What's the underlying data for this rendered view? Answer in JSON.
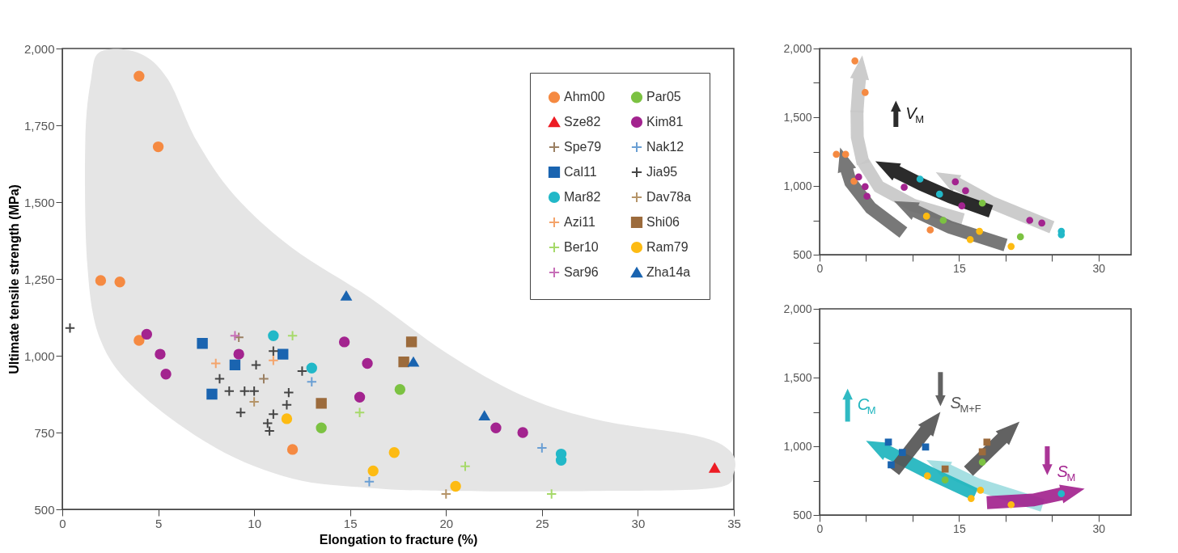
{
  "chart_data": [
    {
      "type": "scatter",
      "xlabel": "Elongation to fracture (%)",
      "ylabel": "Ultimate tensile strength (MPa)",
      "xlim": [
        0,
        35
      ],
      "ylim": [
        500,
        2000
      ],
      "xticks": [
        0,
        5,
        10,
        15,
        20,
        25,
        30,
        35
      ],
      "yticks": [
        500,
        750,
        {
          "value": 1000,
          "label": "1,000"
        },
        {
          "value": 1250,
          "label": "1,250"
        },
        {
          "value": 1500,
          "label": "1,500"
        },
        {
          "value": 1750,
          "label": "1,750"
        },
        {
          "value": 2000,
          "label": "2,000"
        }
      ],
      "grid": false,
      "legend": "top right",
      "series": [
        {
          "type": "area",
          "color": "#e5e5e5",
          "x": [
            2,
            4,
            5.5,
            7,
            9,
            12,
            16,
            20,
            24,
            28,
            33,
            34.8,
            35,
            34,
            28,
            20,
            16,
            12,
            8,
            4,
            2,
            1.3,
            1.2,
            1.5
          ],
          "values": [
            1990,
            1985,
            1900,
            1700,
            1520,
            1350,
            1190,
            1010,
            870,
            790,
            740,
            690,
            620,
            570,
            560,
            560,
            570,
            600,
            700,
            880,
            1050,
            1300,
            1700,
            1900
          ]
        },
        {
          "name": "Ahm00",
          "color": "#f58a42",
          "marker": "circle",
          "x": [
            4,
            5,
            2,
            3,
            4,
            12
          ],
          "values": [
            1910,
            1680,
            1245,
            1240,
            1050,
            695
          ]
        },
        {
          "name": "Spe79",
          "color": "#9b8063",
          "marker": "cross",
          "x": [
            9.2,
            10.5
          ],
          "values": [
            1060,
            925
          ]
        },
        {
          "name": "Mar82",
          "color": "#22b8c8",
          "marker": "circle",
          "x": [
            11,
            13,
            26,
            26
          ],
          "values": [
            1065,
            960,
            680,
            660
          ]
        },
        {
          "name": "Ber10",
          "color": "#a6d96a",
          "marker": "cross",
          "x": [
            12,
            15.5,
            21,
            25.5
          ],
          "values": [
            1065,
            815,
            640,
            550
          ]
        },
        {
          "name": "Par05",
          "color": "#7cc242",
          "marker": "circle",
          "x": [
            13.5,
            17.6
          ],
          "values": [
            765,
            890
          ]
        },
        {
          "name": "Nak12",
          "color": "#6a9fd4",
          "marker": "cross",
          "x": [
            13,
            16,
            25
          ],
          "values": [
            915,
            590,
            700
          ]
        },
        {
          "name": "Dav78a",
          "color": "#b59468",
          "marker": "cross",
          "x": [
            10,
            20
          ],
          "values": [
            850,
            550
          ]
        },
        {
          "name": "Ram79",
          "color": "#fdbb13",
          "marker": "circle",
          "x": [
            11.7,
            16.2,
            17.3,
            20.5
          ],
          "values": [
            795,
            625,
            685,
            575
          ]
        },
        {
          "name": "Sze82",
          "color": "#ed1c24",
          "marker": "triangle",
          "x": [
            34
          ],
          "values": [
            635
          ]
        },
        {
          "name": "Cal11",
          "color": "#1a64b0",
          "marker": "square",
          "x": [
            7.3,
            9,
            7.8,
            11.5
          ],
          "values": [
            1040,
            970,
            875,
            1005
          ]
        },
        {
          "name": "Azi11",
          "color": "#f4a46b",
          "marker": "cross",
          "x": [
            8,
            11
          ],
          "values": [
            975,
            985
          ]
        },
        {
          "name": "Sar96",
          "color": "#c76fb8",
          "marker": "cross",
          "x": [
            9
          ],
          "values": [
            1065
          ]
        },
        {
          "name": "Kim81",
          "color": "#a3248f",
          "marker": "circle",
          "x": [
            4.4,
            5.1,
            5.4,
            9.2,
            14.7,
            15.9,
            15.5,
            22.6,
            24
          ],
          "values": [
            1070,
            1005,
            940,
            1005,
            1045,
            975,
            865,
            765,
            750
          ]
        },
        {
          "name": "Jia95",
          "color": "#444444",
          "marker": "cross",
          "x": [
            0.4,
            8.2,
            8.7,
            9.3,
            9.5,
            10,
            10.1,
            11,
            11,
            10.7,
            10.8,
            11.8,
            11.7,
            12.5
          ],
          "values": [
            1090,
            925,
            885,
            815,
            885,
            885,
            970,
            1015,
            810,
            780,
            755,
            880,
            840,
            950
          ]
        },
        {
          "name": "Shi06",
          "color": "#9c6b3c",
          "marker": "square",
          "x": [
            13.5,
            18.2,
            17.8
          ],
          "values": [
            845,
            1045,
            980
          ]
        },
        {
          "name": "Zha14a",
          "color": "#1a64b0",
          "marker": "triangle",
          "x": [
            14.8,
            18.3,
            22
          ],
          "values": [
            1195,
            980,
            805
          ]
        }
      ]
    },
    {
      "type": "scatter",
      "xlim": [
        0,
        33.5
      ],
      "ylim": [
        500,
        2000
      ],
      "xticks": [
        0,
        {
          "value": 5,
          "label": null
        },
        {
          "value": 10,
          "label": null
        },
        15,
        {
          "value": 20,
          "label": null
        },
        {
          "value": 25,
          "label": null
        },
        30
      ],
      "yticks": [
        500,
        {
          "value": 750,
          "label": null
        },
        {
          "value": 1000,
          "label": "1,000"
        },
        {
          "value": 1250,
          "label": null
        },
        {
          "value": 1500,
          "label": "1,500"
        },
        {
          "value": 1750,
          "label": null
        },
        {
          "value": 2000,
          "label": "2,000"
        }
      ],
      "grid": false,
      "annotations": [
        "V$_{M}$"
      ],
      "series": [
        {
          "color": "#f58a42",
          "marker": "circle",
          "x": [
            3.8,
            4.9,
            1.8,
            2.8,
            3.7,
            11.9
          ],
          "values": [
            1910,
            1680,
            1230,
            1230,
            1035,
            680
          ]
        },
        {
          "color": "#a3248f",
          "marker": "circle",
          "x": [
            4.2,
            4.9,
            5.1,
            9.1,
            14.6,
            15.7,
            15.3,
            22.6,
            23.9
          ],
          "values": [
            1065,
            995,
            925,
            990,
            1030,
            965,
            855,
            750,
            730
          ]
        },
        {
          "color": "#22b8c8",
          "marker": "circle",
          "x": [
            10.8,
            12.9,
            26,
            26
          ],
          "values": [
            1050,
            940,
            670,
            645
          ]
        },
        {
          "color": "#7cc242",
          "marker": "circle",
          "x": [
            17.5,
            13.3,
            21.6
          ],
          "values": [
            875,
            750,
            630
          ]
        },
        {
          "color": "#fdbb13",
          "marker": "circle",
          "x": [
            11.5,
            17.2,
            16.2,
            20.6
          ],
          "values": [
            780,
            670,
            610,
            560
          ]
        }
      ]
    },
    {
      "type": "scatter",
      "xlim": [
        0,
        33.5
      ],
      "ylim": [
        500,
        2000
      ],
      "xticks": [
        0,
        {
          "value": 5,
          "label": null
        },
        {
          "value": 10,
          "label": null
        },
        15,
        {
          "value": 20,
          "label": null
        },
        {
          "value": 25,
          "label": null
        },
        30
      ],
      "yticks": [
        500,
        {
          "value": 750,
          "label": null
        },
        {
          "value": 1000,
          "label": "1,000"
        },
        {
          "value": 1250,
          "label": null
        },
        {
          "value": 1500,
          "label": "1,500"
        },
        {
          "value": 1750,
          "label": null
        },
        {
          "value": 2000,
          "label": "2,000"
        }
      ],
      "grid": false,
      "annotations": [
        "C$_{M}$",
        "S$_{M+F}$",
        "S$_{M}$"
      ],
      "series": [
        {
          "color": "#1a64b0",
          "marker": "square",
          "x": [
            7.4,
            8.9,
            7.7,
            11.4
          ],
          "values": [
            1030,
            955,
            865,
            995
          ]
        },
        {
          "color": "#9c6b3c",
          "marker": "square",
          "x": [
            13.5,
            18,
            17.5
          ],
          "values": [
            835,
            1030,
            960
          ]
        },
        {
          "color": "#7cc242",
          "marker": "circle",
          "x": [
            13.5,
            17.5
          ],
          "values": [
            755,
            885
          ]
        },
        {
          "color": "#fdbb13",
          "marker": "circle",
          "x": [
            11.6,
            17.3,
            16.3,
            20.6
          ],
          "values": [
            785,
            680,
            620,
            575
          ]
        },
        {
          "color": "#22b8c8",
          "marker": "circle",
          "x": [
            26
          ],
          "values": [
            655
          ]
        }
      ]
    }
  ]
}
